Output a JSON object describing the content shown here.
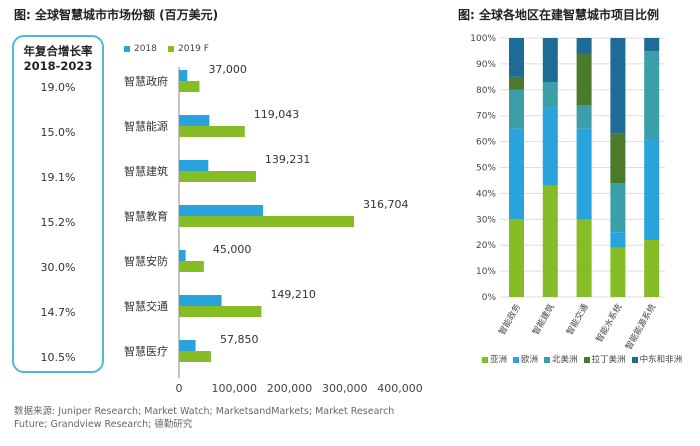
{
  "left_title": "图: 全球智慧城市市场份额 (百万美元)",
  "right_title": "图: 全球各地区在建智慧城市项目比例",
  "cagr": {
    "heading_line1": "年复合增长率",
    "heading_line2": "2018-2023",
    "values": [
      "19.0%",
      "15.0%",
      "19.1%",
      "15.2%",
      "30.0%",
      "14.7%",
      "10.5%"
    ]
  },
  "source_text": "数据来源: Juniper Research; Market Watch; MarketsandMarkets; Market Research Future; Grandview Research; 德勤研究",
  "colors": {
    "blue": "#29a3dc",
    "green": "#86bc25",
    "cagr_border": "#4db8db"
  },
  "chart_data": [
    {
      "type": "bar",
      "orientation": "horizontal",
      "categories": [
        "智慧政府",
        "智慧能源",
        "智慧建筑",
        "智慧教育",
        "智慧安防",
        "智慧交通",
        "智慧医疗"
      ],
      "series": [
        {
          "name": "2018",
          "color": "#29a3dc",
          "values": [
            15000,
            55000,
            53000,
            152000,
            12000,
            77000,
            30000
          ]
        },
        {
          "name": "2019 F",
          "color": "#86bc25",
          "values": [
            37000,
            119043,
            139231,
            316704,
            45000,
            149210,
            57850
          ]
        }
      ],
      "data_labels": [
        "37,000",
        "119,043",
        "139,231",
        "316,704",
        "45,000",
        "149,210",
        "57,850"
      ],
      "xlim": [
        0,
        400000
      ],
      "xticks": [
        "0",
        "100,000",
        "200,000",
        "300,000",
        "400,000"
      ],
      "legend_position": "top",
      "grid": false
    },
    {
      "type": "bar",
      "stacked": true,
      "normalized": true,
      "categories": [
        "智能政务",
        "智能建筑",
        "智能交通",
        "智能水系统",
        "智能能源系统"
      ],
      "series": [
        {
          "name": "亚洲",
          "color": "#86bc25",
          "values": [
            30,
            43,
            30,
            19,
            22
          ]
        },
        {
          "name": "欧洲",
          "color": "#29a3dc",
          "values": [
            35,
            30,
            35,
            6,
            39
          ]
        },
        {
          "name": "北美洲",
          "color": "#3a9fa8",
          "values": [
            15,
            10,
            9,
            19,
            34
          ]
        },
        {
          "name": "拉丁美洲",
          "color": "#4a7a2a",
          "values": [
            5,
            0,
            20,
            19,
            0
          ]
        },
        {
          "name": "中东和非洲",
          "color": "#1e6c96",
          "values": [
            15,
            17,
            6,
            37,
            5
          ]
        }
      ],
      "ylim": [
        0,
        100
      ],
      "yticks": [
        "0%",
        "10%",
        "20%",
        "30%",
        "40%",
        "50%",
        "60%",
        "70%",
        "80%",
        "90%",
        "100%"
      ],
      "legend_position": "bottom",
      "grid": true
    }
  ]
}
